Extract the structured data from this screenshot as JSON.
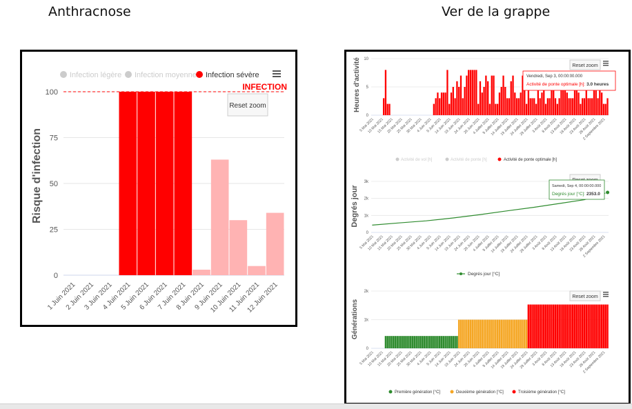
{
  "headings": {
    "left": "Anthracnose",
    "right": "Ver de la grappe"
  },
  "colors": {
    "red": "#ff0000",
    "light_red": "#ffb3b3",
    "green": "#2e8b2e",
    "orange": "#f5a623",
    "grid": "#e6e6e6",
    "legend_grey": "#cccccc"
  },
  "icons": {
    "menu": "hamburger-menu-icon",
    "marker": "circle-marker-icon"
  },
  "chart_data": [
    {
      "id": "anthracnose",
      "type": "bar",
      "ylabel": "Risque d'infection",
      "ylim": [
        0,
        100
      ],
      "yticks": [
        0,
        25,
        50,
        75,
        100
      ],
      "categories": [
        "1 Juin 2021",
        "2 Juin 2021",
        "3 Juin 2021",
        "4 Juin 2021",
        "5 Juin 2021",
        "6 Juin 2021",
        "7 Juin 2021",
        "8 Juin 2021",
        "9 Juin 2021",
        "10 Juin 2021",
        "11 Juin 2021",
        "12 Juin 2021"
      ],
      "values": [
        0,
        0,
        0,
        100,
        100,
        100,
        100,
        3,
        63,
        30,
        5,
        34
      ],
      "value_colors": [
        "light",
        "light",
        "light",
        "red",
        "red",
        "red",
        "red",
        "light",
        "light",
        "light",
        "light",
        "light"
      ],
      "legend": [
        "Infection légère",
        "Infection moyenne",
        "Infection sévère"
      ],
      "threshold": {
        "value": 100,
        "label": "INFECTION"
      },
      "reset_zoom": "Reset zoom",
      "grid": true
    },
    {
      "id": "heures-activite",
      "type": "bar",
      "ylabel": "Heures d'activité",
      "ylim": [
        0,
        10
      ],
      "yticks": [
        0,
        5,
        10
      ],
      "x_ticks": [
        "5 Mai 2021",
        "10 Mai 2021",
        "15 Mai 2021",
        "20 Mai 2021",
        "25 Mai 2021",
        "30 Mai 2021",
        "4 Juin 2021",
        "9 Juin 2021",
        "14 Juin 2021",
        "19 Juin 2021",
        "24 Juin 2021",
        "29 Juin 2021",
        "4 Juillet 2021",
        "9 Juillet 2021",
        "14 Juillet 2021",
        "19 Juillet 2021",
        "24 Juillet 2021",
        "29 Juillet 2021",
        "3 Août 2021",
        "8 Août 2021",
        "13 Août 2021",
        "18 Août 2021",
        "23 Août 2021",
        "28 Août 2021",
        "2 Septembre 2021"
      ],
      "values": [
        0,
        0,
        0,
        0,
        0,
        0,
        3,
        8,
        2,
        2,
        0,
        0,
        0,
        0,
        0,
        0,
        0,
        0,
        0,
        0,
        0,
        0,
        0,
        0,
        0,
        0,
        0,
        0,
        0,
        0,
        0,
        0,
        2,
        3,
        4,
        3,
        4,
        4,
        4,
        8,
        2,
        4,
        5,
        3,
        6,
        5,
        7,
        3,
        5,
        7,
        8,
        8,
        8,
        8,
        8,
        2,
        6,
        4,
        5,
        7,
        6,
        2,
        7,
        7,
        2,
        2,
        4,
        5,
        7,
        5,
        3,
        3,
        6,
        7,
        4,
        3,
        3,
        4,
        7,
        5,
        2,
        6,
        3,
        3,
        3,
        2,
        6,
        3,
        4,
        6,
        2,
        3,
        3,
        5,
        5,
        3,
        2,
        3,
        5,
        6,
        7,
        4,
        3,
        3,
        3,
        5,
        6,
        4,
        2,
        3,
        3,
        7,
        3,
        3,
        3,
        7,
        6,
        3,
        5,
        4,
        2,
        2,
        3
      ],
      "legend": [
        "Activité de vol [h]",
        "Activité de ponte [h]",
        "Activité de ponte optimale [h]"
      ],
      "tooltip": {
        "title": "Vendredi, Sep 3, 00:00:00.000",
        "series": "Activité de ponte optimale [h]:",
        "value": "3.0 heures"
      },
      "reset_zoom": "Reset zoom"
    },
    {
      "id": "degres-jour",
      "type": "line",
      "ylabel": "Degrés jour",
      "ylim": [
        0,
        3000
      ],
      "yticks": [
        "0",
        "1k",
        "2k",
        "3k"
      ],
      "ytick_values": [
        0,
        1000,
        2000,
        3000
      ],
      "series_name": "Degrés jour [°C]",
      "points": [
        [
          0,
          430
        ],
        [
          14,
          560
        ],
        [
          28,
          680
        ],
        [
          42,
          850
        ],
        [
          56,
          1050
        ],
        [
          70,
          1270
        ],
        [
          84,
          1480
        ],
        [
          98,
          1720
        ],
        [
          110,
          1920
        ],
        [
          122,
          2353
        ]
      ],
      "n_days": 123,
      "tooltip": {
        "title": "Samedi, Sep 4, 00:00:00.000",
        "series": "Degrés jour [°C]:",
        "value": "2353.0"
      },
      "reset_zoom": "Reset zoom"
    },
    {
      "id": "generations",
      "type": "bar",
      "ylabel": "Générations",
      "ylim": [
        0,
        2000
      ],
      "yticks": [
        "0",
        "1k",
        "2k"
      ],
      "ytick_values": [
        0,
        1000,
        2000
      ],
      "segments": [
        {
          "name": "Première génération [°C]",
          "start": 7,
          "end": 44,
          "value": 430,
          "color": "green"
        },
        {
          "name": "Deuxième génération [°C]",
          "start": 45,
          "end": 80,
          "value": 1000,
          "color": "orange"
        },
        {
          "name": "Troisième génération [°C]",
          "start": 81,
          "end": 122,
          "value": 1530,
          "color": "red"
        }
      ],
      "reset_zoom": "Reset zoom"
    }
  ]
}
